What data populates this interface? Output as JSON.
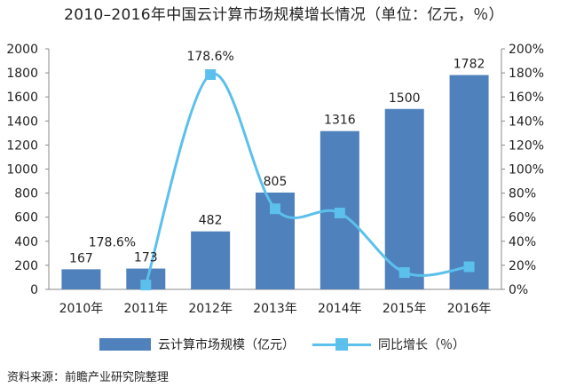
{
  "title": "2010–2016年中国云计算市场规模增长情况（单位：亿元，％）",
  "source": "资料来源：前瞻产业研究院整理",
  "colors": {
    "bar": "#4f81bd",
    "line": "#5bc0eb",
    "axis": "#888888"
  },
  "chart_data": {
    "type": "bar",
    "categories": [
      "2010年",
      "2011年",
      "2012年",
      "2013年",
      "2014年",
      "2015年",
      "2016年"
    ],
    "y_left_ticks": [
      "0",
      "200",
      "400",
      "600",
      "800",
      "1000",
      "1200",
      "1400",
      "1600",
      "1800",
      "2000"
    ],
    "y_right_ticks": [
      "0%",
      "20%",
      "40%",
      "60%",
      "80%",
      "100%",
      "120%",
      "140%",
      "160%",
      "180%",
      "200%"
    ],
    "ylim_left": [
      0,
      2000
    ],
    "ylim_right": [
      0,
      200
    ],
    "grid": false,
    "legend_position": "bottom",
    "series": [
      {
        "name": "云计算市场规模（亿元）",
        "type": "bar",
        "axis": "left",
        "values": [
          167,
          173,
          482,
          805,
          1316,
          1500,
          1782
        ],
        "labels": [
          "167",
          "173",
          "482",
          "805",
          "1316",
          "1500",
          "1782"
        ]
      },
      {
        "name": "同比增长（％）",
        "type": "line",
        "axis": "right",
        "smooth": true,
        "values": [
          null,
          3.6,
          178.6,
          67.0,
          63.5,
          14.0,
          18.8
        ]
      }
    ],
    "annotations": [
      {
        "text": "178.6%",
        "category": "2012年",
        "series": "同比增长（％）"
      },
      {
        "text": "178.6%",
        "category": "2010年",
        "y_left": 315
      }
    ]
  }
}
